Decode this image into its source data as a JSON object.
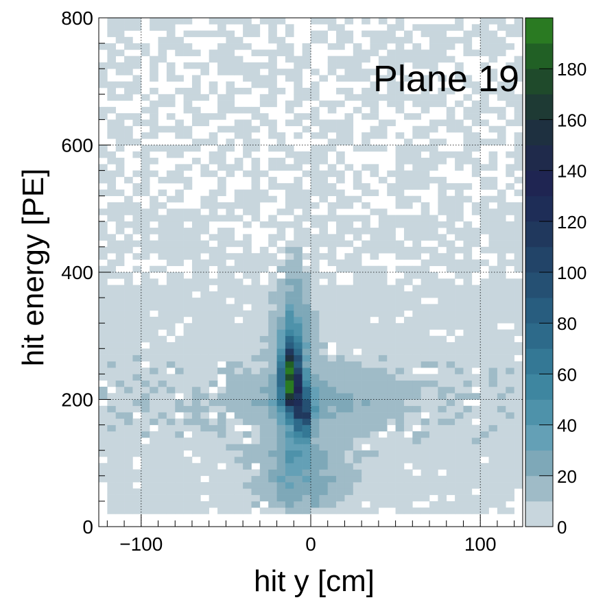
{
  "chart_data": {
    "type": "heatmap",
    "label": "Plane 19",
    "xlabel": "hit y [cm]",
    "ylabel": "hit energy [PE]",
    "xlim": [
      -125,
      125
    ],
    "ylim": [
      0,
      800
    ],
    "xticks": [
      -100,
      0,
      100
    ],
    "xtick_labels": [
      "−100",
      "0",
      "100"
    ],
    "yticks": [
      0,
      200,
      400,
      600,
      800
    ],
    "ytick_labels": [
      "0",
      "200",
      "400",
      "600",
      "800"
    ],
    "grid": true,
    "colorbar": {
      "zlim": [
        0,
        200
      ],
      "ticks": [
        0,
        20,
        40,
        60,
        80,
        100,
        120,
        140,
        160,
        180
      ],
      "tick_labels": [
        "0",
        "20",
        "40",
        "60",
        "80",
        "100",
        "120",
        "140",
        "160",
        "180"
      ],
      "levels": 20,
      "colors": [
        "#c8d6dd",
        "#9fbbc7",
        "#7ea8b8",
        "#64a0b6",
        "#4e92aa",
        "#3e86a0",
        "#347895",
        "#2d6a8a",
        "#285d7f",
        "#255073",
        "#224468",
        "#20385d",
        "#1e2d57",
        "#1f2552",
        "#1f2a4b",
        "#1e3040",
        "#1e3a34",
        "#1f4a2b",
        "#216025",
        "#2a7a22"
      ]
    },
    "bins": {
      "nx": 50,
      "ny": 80,
      "x_range": [
        -125,
        125
      ],
      "y_range": [
        0,
        800
      ],
      "description_of_structure": [
        {
          "y_center_cm": -12,
          "energy_peak_PE": 230,
          "max_count": 195
        },
        {
          "y_center_cm": -5,
          "energy_peak_PE": 180,
          "max_count": 120
        },
        {
          "y_center_cm": -10,
          "energy_range_PE": [
            120,
            520
          ],
          "typical_count": 40
        }
      ]
    }
  }
}
